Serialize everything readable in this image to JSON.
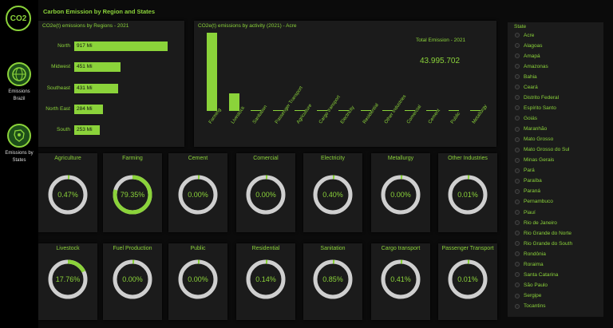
{
  "app": {
    "title": "Carbon Emission by Region and States",
    "logo_text": "CO2"
  },
  "nav": [
    {
      "label": "Emissions Brazil",
      "icon": "globe-icon"
    },
    {
      "label": "Emissions by States",
      "icon": "map-icon"
    }
  ],
  "regions": {
    "title": "CO2e(t) emissions by Regions - 2021",
    "items": [
      {
        "name": "North",
        "value": "917 Mi",
        "num": 917
      },
      {
        "name": "Midwest",
        "value": "451 Mi",
        "num": 451
      },
      {
        "name": "Southeast",
        "value": "431 Mi",
        "num": 431
      },
      {
        "name": "North East",
        "value": "284 Mi",
        "num": 284
      },
      {
        "name": "South",
        "value": "253 Mi",
        "num": 253
      }
    ]
  },
  "activity": {
    "title": "CO2e(t) emissions by activity (2021) - Acre",
    "total_label": "Total Emission - 2021",
    "total_value": "43.995.702"
  },
  "chart_data": {
    "type": "bar",
    "categories": [
      "Farming",
      "Livestock",
      "Sanitation",
      "Passenger Transport",
      "Agriculture",
      "Cargo transport",
      "Electricity",
      "Residential",
      "Other Industries",
      "Comercial",
      "Cement",
      "Public",
      "Metallurgy"
    ],
    "values": [
      34911000,
      7813000,
      374000,
      4400,
      207000,
      180000,
      176000,
      62000,
      4400,
      0,
      0,
      0,
      0
    ],
    "title": "CO2e(t) emissions by activity (2021) - Acre"
  },
  "gauges_row1": [
    {
      "label": "Agriculture",
      "value": "0.47%",
      "pct": 0.47
    },
    {
      "label": "Farming",
      "value": "79.35%",
      "pct": 79.35
    },
    {
      "label": "Cement",
      "value": "0.00%",
      "pct": 0
    },
    {
      "label": "Comercial",
      "value": "0.00%",
      "pct": 0
    },
    {
      "label": "Electricity",
      "value": "0.40%",
      "pct": 0.4
    },
    {
      "label": "Metallurgy",
      "value": "0.00%",
      "pct": 0
    },
    {
      "label": "Other Industries",
      "value": "0.01%",
      "pct": 0.01
    }
  ],
  "gauges_row2": [
    {
      "label": "Livestock",
      "value": "17.76%",
      "pct": 17.76
    },
    {
      "label": "Fuel Production",
      "value": "0.00%",
      "pct": 0
    },
    {
      "label": "Public",
      "value": "0.00%",
      "pct": 0
    },
    {
      "label": "Residential",
      "value": "0.14%",
      "pct": 0.14
    },
    {
      "label": "Sanitation",
      "value": "0.85%",
      "pct": 0.85
    },
    {
      "label": "Cargo transport",
      "value": "0.41%",
      "pct": 0.41
    },
    {
      "label": "Passenger Transport",
      "value": "0.01%",
      "pct": 0.01
    }
  ],
  "states": {
    "title": "State",
    "items": [
      "Acre",
      "Alagoas",
      "Amapá",
      "Amazonas",
      "Bahia",
      "Ceará",
      "Distrito Federal",
      "Espírito Santo",
      "Goiás",
      "Maranhão",
      "Mato Grosso",
      "Mato Grosso do Sul",
      "Minas Gerais",
      "Pará",
      "Paraíba",
      "Paraná",
      "Pernambuco",
      "Piauí",
      "Rio de Janeiro",
      "Rio Grande do Norte",
      "Rio Grande do South",
      "Rondônia",
      "Roraima",
      "Santa Catarina",
      "São Paulo",
      "Sergipe",
      "Tocantins"
    ]
  },
  "colors": {
    "accent": "#8bd33a",
    "track": "#cfcfcf",
    "panel": "#1b1b1b",
    "background": "#0b0b0b"
  }
}
